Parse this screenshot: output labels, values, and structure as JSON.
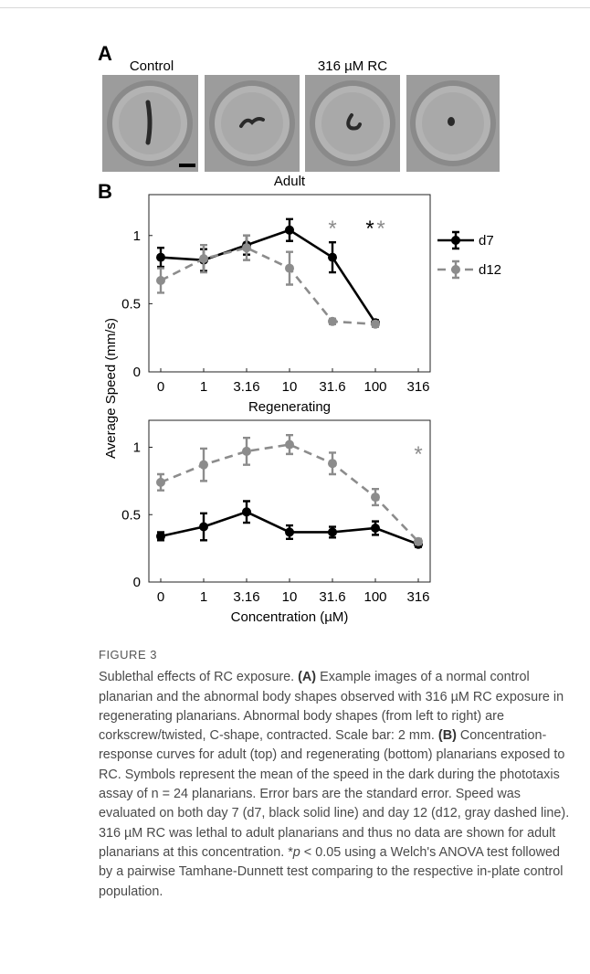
{
  "panel_a": {
    "label": "A",
    "labels": [
      "Control",
      "316 µM RC"
    ]
  },
  "panel_b": {
    "label": "B"
  },
  "chart_data": [
    {
      "type": "line",
      "title": "Adult",
      "ylabel": "Average Speed (mm/s)",
      "categories": [
        "0",
        "1",
        "3.16",
        "10",
        "31.6",
        "100",
        "316"
      ],
      "ylim": [
        0,
        1.3
      ],
      "yticks": [
        0,
        0.5,
        1
      ],
      "legend": "right",
      "series": [
        {
          "name": "d7",
          "color": "#000000",
          "dash": false,
          "values": [
            0.84,
            0.82,
            0.93,
            1.04,
            0.84,
            0.36,
            null
          ],
          "errors": [
            0.07,
            0.08,
            0.07,
            0.08,
            0.11,
            0.02,
            null
          ],
          "significance": [
            null,
            null,
            null,
            null,
            null,
            "*",
            null
          ]
        },
        {
          "name": "d12",
          "color": "#8c8c8c",
          "dash": true,
          "values": [
            0.67,
            0.83,
            0.91,
            0.76,
            0.37,
            0.35,
            null
          ],
          "errors": [
            0.09,
            0.1,
            0.09,
            0.12,
            0.02,
            0.02,
            null
          ],
          "significance": [
            null,
            null,
            null,
            null,
            "*",
            "*",
            null
          ]
        }
      ]
    },
    {
      "type": "line",
      "title": "Regenerating",
      "xlabel": "Concentration (µM)",
      "categories": [
        "0",
        "1",
        "3.16",
        "10",
        "31.6",
        "100",
        "316"
      ],
      "ylim": [
        0,
        1.2
      ],
      "yticks": [
        0,
        0.5,
        1
      ],
      "series": [
        {
          "name": "d7",
          "color": "#000000",
          "dash": false,
          "values": [
            0.34,
            0.41,
            0.52,
            0.37,
            0.37,
            0.4,
            0.28
          ],
          "errors": [
            0.03,
            0.1,
            0.08,
            0.05,
            0.04,
            0.05,
            0.02
          ],
          "significance": [
            null,
            null,
            null,
            null,
            null,
            null,
            null
          ]
        },
        {
          "name": "d12",
          "color": "#8c8c8c",
          "dash": true,
          "values": [
            0.74,
            0.87,
            0.97,
            1.02,
            0.88,
            0.63,
            0.3
          ],
          "errors": [
            0.06,
            0.12,
            0.1,
            0.07,
            0.08,
            0.06,
            0.02
          ],
          "significance": [
            null,
            null,
            null,
            null,
            null,
            null,
            "*"
          ]
        }
      ]
    }
  ],
  "caption": {
    "label": "FIGURE 3",
    "parts": [
      "Sublethal effects of RC exposure. ",
      "(A)",
      " Example images of a normal control planarian and the abnormal body shapes observed with 316 µM RC exposure in regenerating planarians. Abnormal body shapes (from left to right) are corkscrew/twisted, C-shape, contracted. Scale bar: 2 mm. ",
      "(B)",
      " Concentration-response curves for adult (top) and regenerating (bottom) planarians exposed to RC. Symbols represent the mean of the speed in the dark during the phototaxis assay of n = 24 planarians. Error bars are the standard error. Speed was evaluated on both day 7 (d7, black solid line) and day 12 (d12, gray dashed line). 316 µM RC was lethal to adult planarians and thus no data are shown for adult planarians at this concentration. *",
      "p",
      " < 0.05 using a Welch's ANOVA test followed by a pairwise Tamhane-Dunnett test comparing to the respective in-plate control population."
    ]
  }
}
